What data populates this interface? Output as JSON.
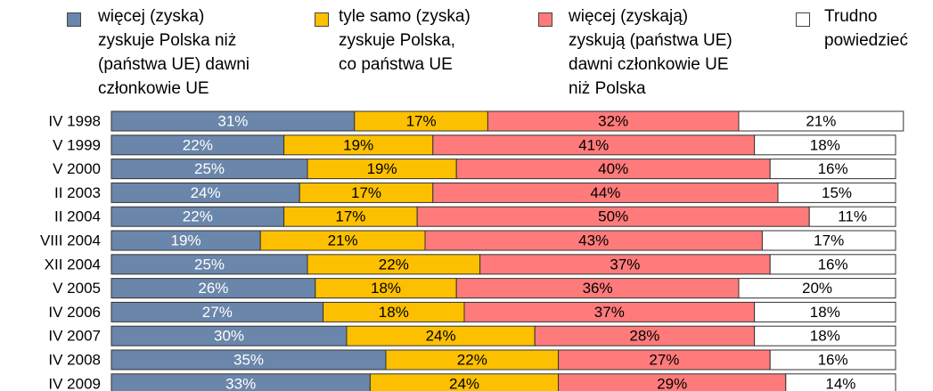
{
  "chart_data": {
    "type": "stacked-bar-horizontal",
    "categories": [
      "IV 1998",
      "V 1999",
      "V 2000",
      "II 2003",
      "II 2004",
      "VIII 2004",
      "XII 2004",
      "V 2005",
      "IV 2006",
      "IV 2007",
      "IV 2008",
      "IV 2009"
    ],
    "series": [
      {
        "name": "więcej (zyska)\nzyskuje  Polska niż\n(państwa UE) dawni\nczłonkowie UE",
        "color": "#6a86aa",
        "label_color": "#ffffff",
        "values": [
          31,
          22,
          25,
          24,
          22,
          19,
          25,
          26,
          27,
          30,
          35,
          33
        ],
        "value_labels": [
          "31%",
          "22%",
          "25%",
          "24%",
          "22%",
          "19%",
          "25%",
          "26%",
          "27%",
          "30%",
          "35%",
          "33%"
        ]
      },
      {
        "name": "tyle samo (zyska)\nzyskuje  Polska,\nco państwa UE",
        "color": "#fcc000",
        "label_color": "#000000",
        "values": [
          17,
          19,
          19,
          17,
          17,
          21,
          22,
          18,
          18,
          24,
          22,
          24
        ],
        "value_labels": [
          "17%",
          "19%",
          "19%",
          "17%",
          "17%",
          "21%",
          "22%",
          "18%",
          "18%",
          "24%",
          "22%",
          "24%"
        ]
      },
      {
        "name": "więcej (zyskają)\nzyskują (państwa UE)\ndawni członkowie UE\nniż Polska",
        "color": "#ff7b7b",
        "label_color": "#000000",
        "values": [
          32,
          41,
          40,
          44,
          50,
          43,
          37,
          36,
          37,
          28,
          27,
          29
        ],
        "value_labels": [
          "32%",
          "41%",
          "40%",
          "44%",
          "50%",
          "43%",
          "37%",
          "36%",
          "37%",
          "28%",
          "27%",
          "29%"
        ]
      },
      {
        "name": "Trudno\npowiedzieć",
        "color": "#ffffff",
        "label_color": "#000000",
        "values": [
          21,
          18,
          16,
          15,
          11,
          17,
          16,
          20,
          18,
          18,
          16,
          14
        ],
        "value_labels": [
          "21%",
          "18%",
          "16%",
          "15%",
          "11%",
          "17%",
          "16%",
          "20%",
          "18%",
          "18%",
          "16%",
          "14%"
        ]
      }
    ]
  }
}
